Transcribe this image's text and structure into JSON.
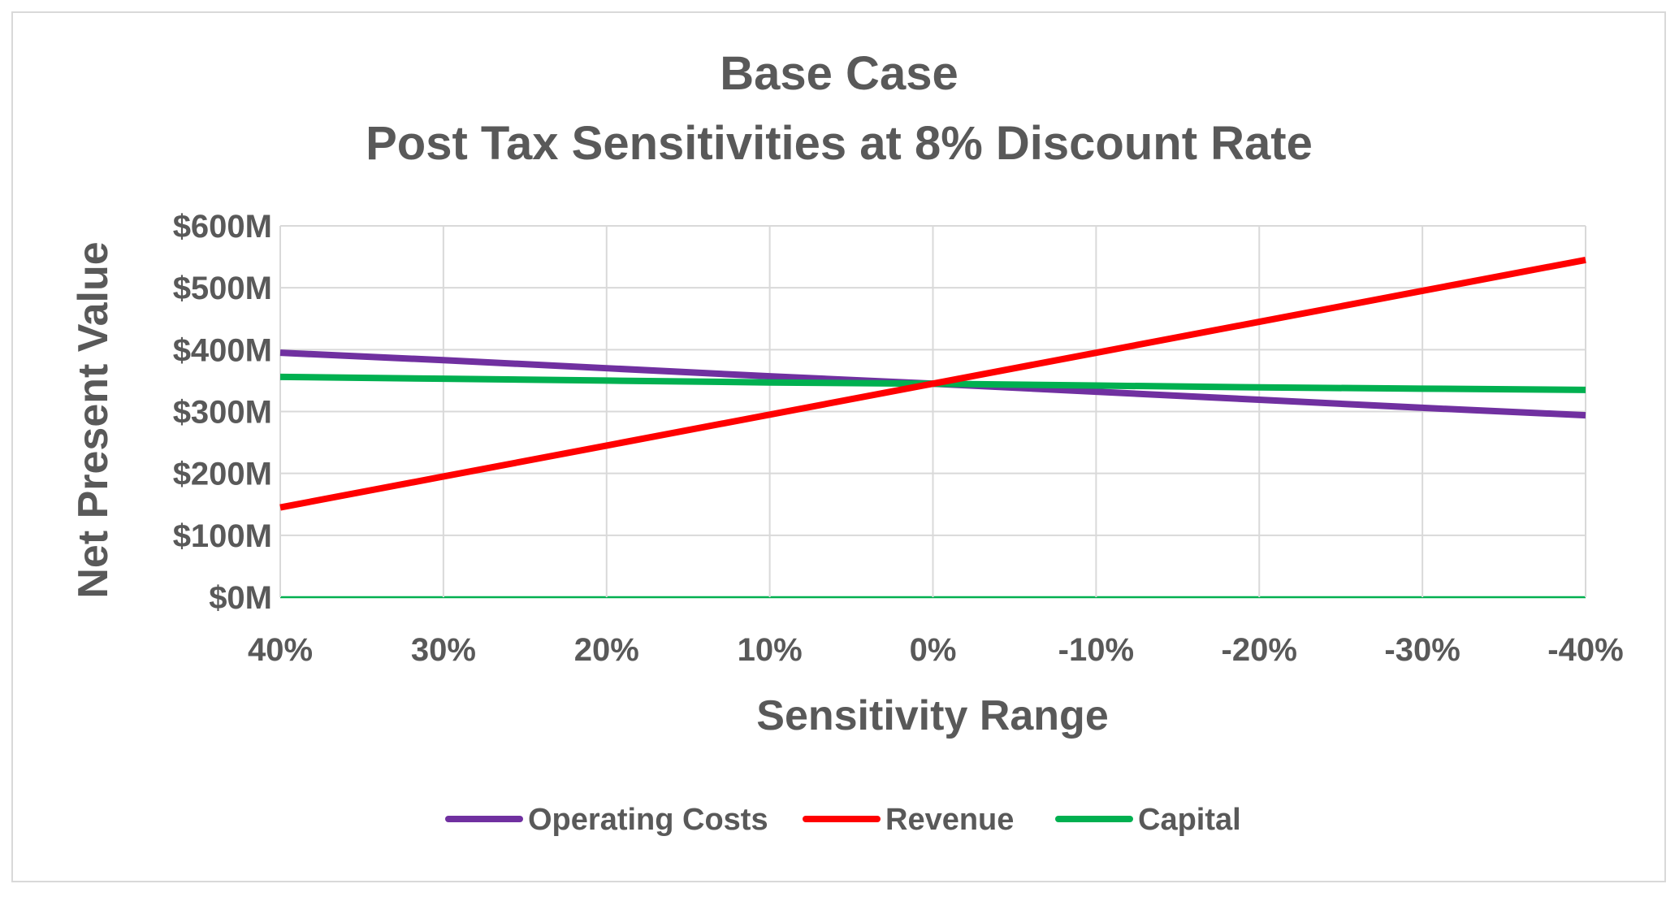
{
  "chart_data": {
    "type": "line",
    "title": "Base Case",
    "subtitle": "Post Tax Sensitivities at 8% Discount Rate",
    "xlabel": "Sensitivity Range",
    "ylabel": "Net Present Value",
    "categories": [
      "40%",
      "30%",
      "20%",
      "10%",
      "0%",
      "-10%",
      "-20%",
      "-30%",
      "-40%"
    ],
    "x_values": [
      40,
      30,
      20,
      10,
      0,
      -10,
      -20,
      -30,
      -40
    ],
    "y_ticks": [
      0,
      100,
      200,
      300,
      400,
      500,
      600
    ],
    "y_tick_labels": [
      "$0M",
      "$100M",
      "$200M",
      "$300M",
      "$400M",
      "$500M",
      "$600M"
    ],
    "ylim": [
      0,
      600
    ],
    "grid": true,
    "legend_position": "bottom",
    "series": [
      {
        "name": "Operating Costs",
        "color": "#7030a0",
        "values": [
          395,
          383,
          370,
          357,
          345,
          332,
          319,
          306,
          294
        ]
      },
      {
        "name": "Revenue",
        "color": "#ff0000",
        "values": [
          145,
          195,
          245,
          295,
          345,
          395,
          445,
          495,
          545
        ]
      },
      {
        "name": "Capital",
        "color": "#00b050",
        "values": [
          356,
          353,
          350,
          347,
          345,
          342,
          339,
          337,
          335
        ]
      }
    ]
  }
}
